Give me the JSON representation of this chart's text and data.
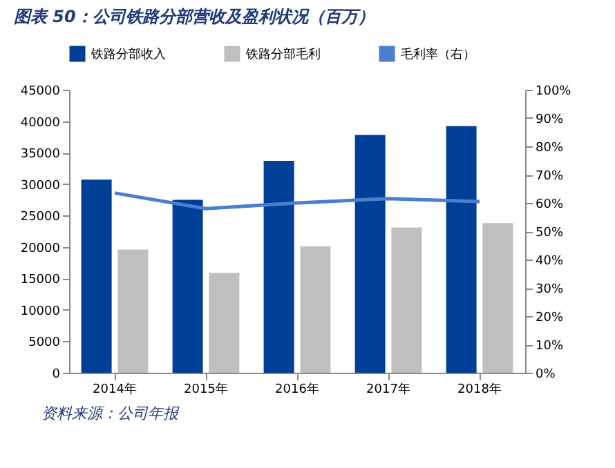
{
  "chart_data": {
    "type": "bar",
    "title": "图表 50：公司铁路分部营收及盈利状况（百万）",
    "categories": [
      "2014年",
      "2015年",
      "2016年",
      "2017年",
      "2018年"
    ],
    "series": [
      {
        "name": "铁路分部收入",
        "color": "#003f98",
        "values": [
          30700,
          27500,
          33700,
          37800,
          39200
        ]
      },
      {
        "name": "铁路分部毛利",
        "color": "#bfbfbf",
        "values": [
          19600,
          15900,
          20100,
          23100,
          23800
        ]
      },
      {
        "name": "毛利率（右）",
        "type": "line",
        "axis": "y2",
        "color": "#4a7fcf",
        "values": [
          63.5,
          58,
          60,
          61.5,
          60.5
        ]
      }
    ],
    "ylim": [
      0,
      45000
    ],
    "yticks": [
      0,
      5000,
      10000,
      15000,
      20000,
      25000,
      30000,
      35000,
      40000,
      45000
    ],
    "y2lim": [
      0,
      100
    ],
    "y2ticks": [
      {
        "value": 0,
        "label": "0%"
      },
      {
        "value": 10,
        "label": "10%"
      },
      {
        "value": 20,
        "label": "20%"
      },
      {
        "value": 30,
        "label": "30%"
      },
      {
        "value": 40,
        "label": "40%"
      },
      {
        "value": 50,
        "label": "50%"
      },
      {
        "value": 60,
        "label": "60%"
      },
      {
        "value": 70,
        "label": "70%"
      },
      {
        "value": 80,
        "label": "80%"
      },
      {
        "value": 90,
        "label": "90%"
      },
      {
        "value": 100,
        "label": "100%"
      }
    ],
    "grid": false,
    "legend": "top",
    "line_style": "solid",
    "marker": "none",
    "annotations": [
      "资料来源：公司年报"
    ]
  }
}
